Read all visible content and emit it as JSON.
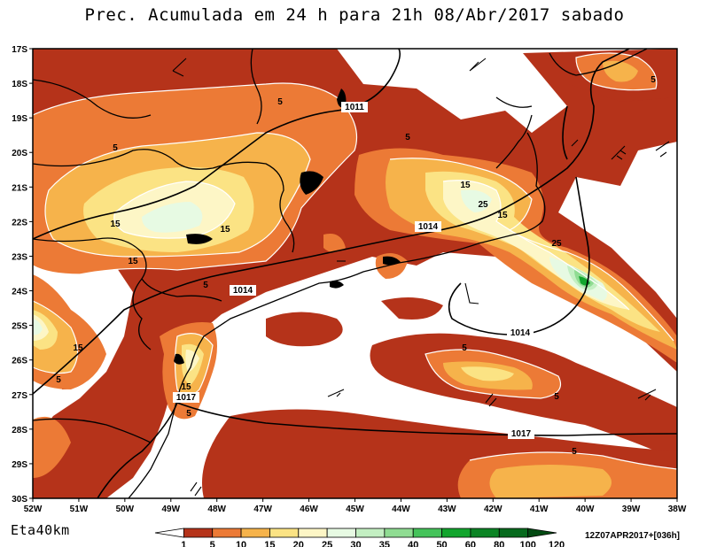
{
  "title": "Prec. Acumulada em 24 h para 21h 08/Abr/2017 sabado",
  "model": "Eta40km",
  "run_stamp": "12Z07APR2017+[036h]",
  "lat_labels": [
    "17S",
    "18S",
    "19S",
    "20S",
    "21S",
    "22S",
    "23S",
    "24S",
    "25S",
    "26S",
    "27S",
    "28S",
    "29S",
    "30S"
  ],
  "lon_labels": [
    "52W",
    "51W",
    "50W",
    "49W",
    "48W",
    "47W",
    "46W",
    "45W",
    "44W",
    "43W",
    "42W",
    "41W",
    "40W",
    "39W",
    "38W"
  ],
  "colorbar": {
    "levels": [
      "1",
      "5",
      "10",
      "15",
      "20",
      "25",
      "30",
      "35",
      "40",
      "50",
      "60",
      "80",
      "100",
      "120"
    ],
    "colors": [
      "#ffffff",
      "#b5331a",
      "#ec7a36",
      "#f6b34b",
      "#fbe384",
      "#fdf6c6",
      "#e7fae3",
      "#c3efc2",
      "#8fdc92",
      "#44c35a",
      "#12a52d",
      "#0b8424",
      "#066a1d",
      "#024a12"
    ]
  },
  "precip_labels": [
    {
      "text": "5"
    },
    {
      "text": "5"
    },
    {
      "text": "5"
    },
    {
      "text": "15"
    },
    {
      "text": "15"
    },
    {
      "text": "15"
    },
    {
      "text": "5"
    },
    {
      "text": "15"
    },
    {
      "text": "25"
    },
    {
      "text": "15"
    },
    {
      "text": "25"
    },
    {
      "text": "15"
    },
    {
      "text": "5"
    },
    {
      "text": "15"
    },
    {
      "text": "5"
    },
    {
      "text": "5"
    },
    {
      "text": "5"
    },
    {
      "text": "5"
    },
    {
      "text": "5"
    }
  ],
  "isobar_labels": [
    {
      "text": "1011"
    },
    {
      "text": "1014"
    },
    {
      "text": "1014"
    },
    {
      "text": "1014"
    },
    {
      "text": "1017"
    },
    {
      "text": "1017"
    }
  ]
}
